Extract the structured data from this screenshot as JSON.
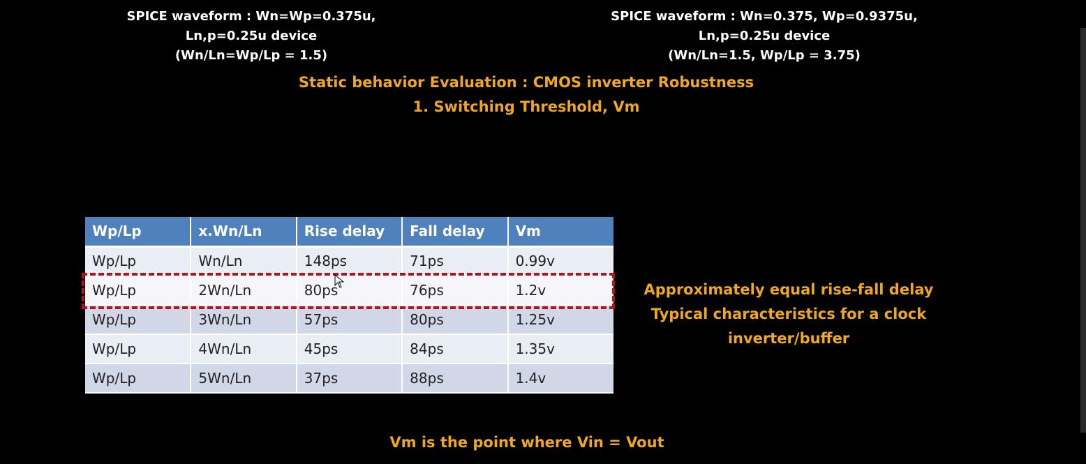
{
  "captions": {
    "left": [
      "SPICE waveform : Wn=Wp=0.375u,",
      "Ln,p=0.25u device",
      "(Wn/Ln=Wp/Lp = 1.5)"
    ],
    "right": [
      "SPICE waveform : Wn=0.375, Wp=0.9375u,",
      "Ln,p=0.25u device",
      "(Wn/Ln=1.5, Wp/Lp = 3.75)"
    ]
  },
  "title": {
    "line1": "Static behavior Evaluation : CMOS inverter Robustness",
    "line2": "1. Switching Threshold, Vm"
  },
  "table": {
    "headers": [
      "Wp/Lp",
      "x.Wn/Ln",
      "Rise delay",
      "Fall delay",
      "Vm"
    ],
    "rows": [
      [
        "Wp/Lp",
        "Wn/Ln",
        "148ps",
        "71ps",
        "0.99v"
      ],
      [
        "Wp/Lp",
        "2Wn/Ln",
        "80ps",
        "76ps",
        "1.2v"
      ],
      [
        "Wp/Lp",
        "3Wn/Ln",
        "57ps",
        "80ps",
        "1.25v"
      ],
      [
        "Wp/Lp",
        "4Wn/Ln",
        "45ps",
        "84ps",
        "1.35v"
      ],
      [
        "Wp/Lp",
        "5Wn/Ln",
        "37ps",
        "88ps",
        "1.4v"
      ]
    ],
    "highlighted_row": 1
  },
  "note": {
    "line1": "Approximately equal rise-fall delay",
    "line2": "Typical characteristics for a clock",
    "line3": "inverter/buffer"
  },
  "footer": "Vm is the point where Vin = Vout",
  "colors": {
    "background": "#000000",
    "accent": "#f0a81e",
    "header": "#4f81bd",
    "highlight_border": "#b5121b"
  }
}
